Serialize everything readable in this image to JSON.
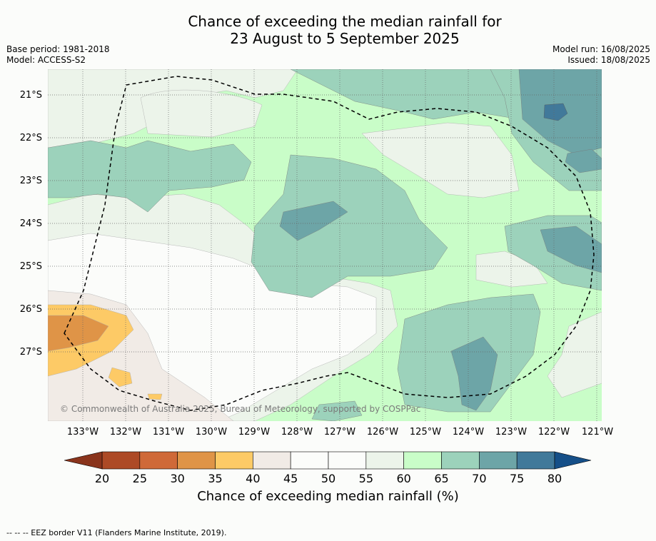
{
  "title": {
    "line1": "Chance of exceeding the median rainfall for",
    "line2": "23 August to 5 September 2025"
  },
  "meta": {
    "base_period": "Base period: 1981-2018",
    "model": "Model: ACCESS-S2",
    "model_run": "Model run: 16/08/2025",
    "issued": "Issued: 18/08/2025"
  },
  "map": {
    "lat_labels": [
      "21°S",
      "22°S",
      "23°S",
      "24°S",
      "25°S",
      "26°S",
      "27°S"
    ],
    "lon_labels": [
      "133°W",
      "132°W",
      "131°W",
      "130°W",
      "129°W",
      "128°W",
      "127°W",
      "126°W",
      "125°W",
      "124°W",
      "123°W",
      "122°W",
      "121°W"
    ],
    "copyright": "© Commonwealth of Australia 2025, Bureau of Meteorology, supported by COSPPac"
  },
  "colorbar": {
    "ticks": [
      "20",
      "25",
      "30",
      "35",
      "40",
      "45",
      "50",
      "55",
      "60",
      "65",
      "70",
      "75",
      "80"
    ],
    "colors": [
      "#ad4a26",
      "#cf6938",
      "#df9447",
      "#fdca66",
      "#f1ebe6",
      "#fbfcfa",
      "#fbfcfa",
      "#ecf4ea",
      "#c9fdc8",
      "#9cd2bb",
      "#6da5a7",
      "#41799a"
    ],
    "low_extend_color": "#8a341c",
    "high_extend_color": "#154f88",
    "label": "Chance of exceeding median rainfall (%)"
  },
  "footnote": "--  --  -- EEZ border V11 (Flanders Marine Institute, 2019)."
}
